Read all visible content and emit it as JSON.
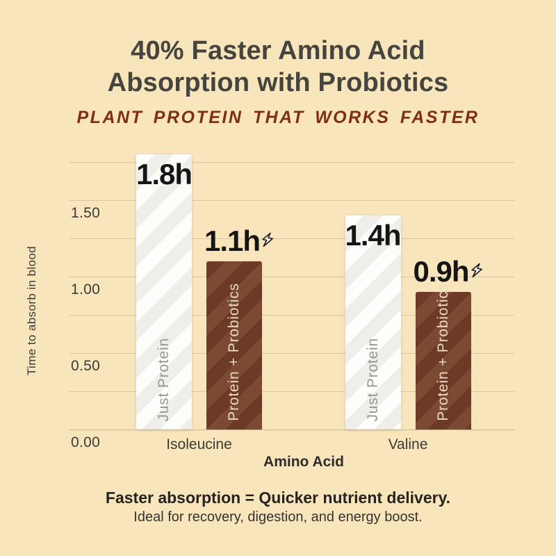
{
  "header": {
    "title_line1": "40% Faster Amino Acid",
    "title_line2": "Absorption with Probiotics",
    "subtitle": "PLANT PROTEIN THAT WORKS FASTER"
  },
  "chart_data": {
    "type": "bar",
    "title": "40% Faster Amino Acid Absorption with Probiotics",
    "subtitle": "Plant protein that works faster",
    "xlabel": "Amino Acid",
    "ylabel": "Time to absorb in blood",
    "unit": "hours",
    "categories": [
      "Isoleucine",
      "Valine"
    ],
    "series": [
      {
        "name": "Just Protein",
        "values": [
          1.8,
          1.4
        ],
        "value_labels": [
          "1.8h",
          "1.4h"
        ],
        "bolt": false,
        "label_placement": "inside-top",
        "fill": "#FDFDFC",
        "stripe": "#EFEEE9",
        "name_color": "#96958E"
      },
      {
        "name": "Protein + Probiotics",
        "values": [
          1.1,
          0.9
        ],
        "value_labels": [
          "1.1h",
          "0.9h"
        ],
        "bolt": true,
        "label_placement": "above",
        "fill": "#6C3A27",
        "stripe": "#7C4933",
        "name_color": "#EBDCC1"
      }
    ],
    "ylim": [
      0,
      1.8
    ],
    "yticks": [
      {
        "value": 0.0,
        "label": "0.00"
      },
      {
        "value": 0.5,
        "label": "0.50"
      },
      {
        "value": 1.0,
        "label": "1.00"
      },
      {
        "value": 1.5,
        "label": "1.50"
      }
    ],
    "gridlines": [
      0,
      0.25,
      0.5,
      0.75,
      1.0,
      1.25,
      1.5,
      1.75
    ],
    "grid": true,
    "legend_position": "labels-inside-bars"
  },
  "footer": {
    "line1": "Faster absorption = Quicker nutrient delivery.",
    "line2": "Ideal for recovery, digestion, and energy boost."
  },
  "icons": {
    "bolt": "lightning-bolt"
  },
  "colors": {
    "background": "#F8E5BC",
    "title_text": "#45443E",
    "subtitle_text": "#7E2E13",
    "grid_line": "#D5C6A2",
    "axis_line": "#C7B791",
    "tick_text": "#3B3A35",
    "value_label": "#151515",
    "footer_strong": "#24231F",
    "footer_sub": "#34332E"
  }
}
